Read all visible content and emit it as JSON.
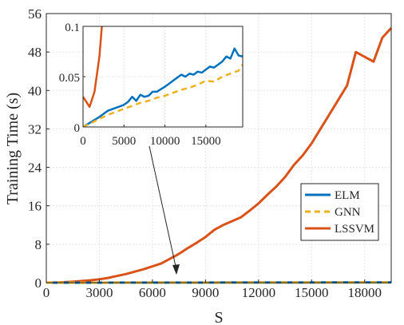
{
  "chart_data": {
    "type": "line",
    "xlabel": "S",
    "ylabel": "Training Time (s)",
    "xlim": [
      0,
      19500
    ],
    "ylim": [
      0,
      56
    ],
    "xticks": [
      0,
      3000,
      6000,
      9000,
      12000,
      15000,
      18000
    ],
    "xtick_labels": [
      "0",
      "3000",
      "6000",
      "9000",
      "12000",
      "15000",
      "18000"
    ],
    "yticks": [
      0,
      8,
      16,
      24,
      32,
      40,
      48,
      56
    ],
    "ytick_labels": [
      "0",
      "8",
      "16",
      "24",
      "32",
      "40",
      "48",
      "56"
    ],
    "grid": true,
    "legend_position": "center-right",
    "series": [
      {
        "name": "ELM",
        "color": "#0072BD",
        "dash": "solid",
        "x": [
          0,
          1000,
          2000,
          3000,
          4000,
          5000,
          6000,
          7000,
          8000,
          9000,
          10000,
          11000,
          12000,
          13000,
          14000,
          15000,
          16000,
          17000,
          18000,
          19500
        ],
        "y": [
          0,
          0.003,
          0.006,
          0.01,
          0.013,
          0.016,
          0.02,
          0.023,
          0.026,
          0.03,
          0.033,
          0.036,
          0.04,
          0.043,
          0.046,
          0.05,
          0.053,
          0.056,
          0.06,
          0.065
        ]
      },
      {
        "name": "GNN",
        "color": "#EDB120",
        "dash": "dashed",
        "x": [
          0,
          1000,
          2000,
          3000,
          4000,
          5000,
          6000,
          7000,
          8000,
          9000,
          10000,
          11000,
          12000,
          13000,
          14000,
          15000,
          16000,
          17000,
          18000,
          19500
        ],
        "y": [
          0,
          0.003,
          0.005,
          0.008,
          0.011,
          0.014,
          0.017,
          0.02,
          0.023,
          0.026,
          0.029,
          0.032,
          0.035,
          0.038,
          0.041,
          0.044,
          0.047,
          0.05,
          0.053,
          0.057
        ]
      },
      {
        "name": "LSSVM",
        "color": "#D95319",
        "dash": "solid",
        "x": [
          0,
          500,
          1000,
          1500,
          2000,
          2500,
          3000,
          3500,
          4000,
          4500,
          5000,
          5500,
          6000,
          6500,
          7000,
          7500,
          8000,
          8500,
          9000,
          9500,
          10000,
          10500,
          11000,
          11500,
          12000,
          12500,
          13000,
          13500,
          14000,
          14500,
          15000,
          15500,
          16000,
          16500,
          17000,
          17500,
          18000,
          18500,
          19000,
          19500
        ],
        "y": [
          0.03,
          0.02,
          0.1,
          0.2,
          0.35,
          0.5,
          0.7,
          1.0,
          1.4,
          1.8,
          2.3,
          2.8,
          3.4,
          4.0,
          5.0,
          6.0,
          7.2,
          8.3,
          9.5,
          11.0,
          12.0,
          12.8,
          13.6,
          15.0,
          16.5,
          18.3,
          20.0,
          22.0,
          24.5,
          26.5,
          29.0,
          32.0,
          35.0,
          38.0,
          41.0,
          48.0,
          47.0,
          46.0,
          51.0,
          53.0
        ]
      }
    ],
    "inset": {
      "xlim": [
        0,
        19500
      ],
      "ylim": [
        0,
        0.1
      ],
      "xticks": [
        0,
        5000,
        10000,
        15000
      ],
      "xtick_labels": [
        "0",
        "5000",
        "10000",
        "15000"
      ],
      "yticks": [
        0,
        0.05,
        0.1
      ],
      "ytick_labels": [
        "0",
        "0.05",
        "0.1"
      ],
      "elm": {
        "x": [
          0,
          1000,
          2000,
          2500,
          3000,
          4000,
          5000,
          5500,
          6000,
          6500,
          7000,
          7500,
          8000,
          8500,
          9000,
          10000,
          10500,
          11000,
          11500,
          12000,
          12500,
          13000,
          13500,
          14000,
          14500,
          15000,
          15500,
          16000,
          16500,
          17000,
          17500,
          18000,
          18500,
          19000,
          19500
        ],
        "y": [
          0,
          0.005,
          0.01,
          0.013,
          0.016,
          0.019,
          0.022,
          0.025,
          0.03,
          0.026,
          0.032,
          0.03,
          0.031,
          0.035,
          0.035,
          0.04,
          0.043,
          0.046,
          0.049,
          0.052,
          0.05,
          0.053,
          0.052,
          0.055,
          0.054,
          0.057,
          0.06,
          0.059,
          0.062,
          0.065,
          0.07,
          0.068,
          0.078,
          0.071,
          0.07
        ]
      },
      "gnn": {
        "x": [
          0,
          1000,
          2000,
          3000,
          4000,
          5000,
          6000,
          7000,
          8000,
          9000,
          10000,
          11000,
          12000,
          13000,
          14000,
          15000,
          16000,
          17000,
          18000,
          19000,
          19500
        ],
        "y": [
          0,
          0.004,
          0.008,
          0.012,
          0.015,
          0.018,
          0.021,
          0.024,
          0.026,
          0.029,
          0.031,
          0.034,
          0.037,
          0.039,
          0.042,
          0.046,
          0.045,
          0.05,
          0.053,
          0.056,
          0.062
        ]
      },
      "lssvm": {
        "x": [
          0,
          800,
          1400,
          2000,
          2500
        ],
        "y": [
          0.03,
          0.02,
          0.035,
          0.07,
          0.12
        ]
      }
    }
  }
}
